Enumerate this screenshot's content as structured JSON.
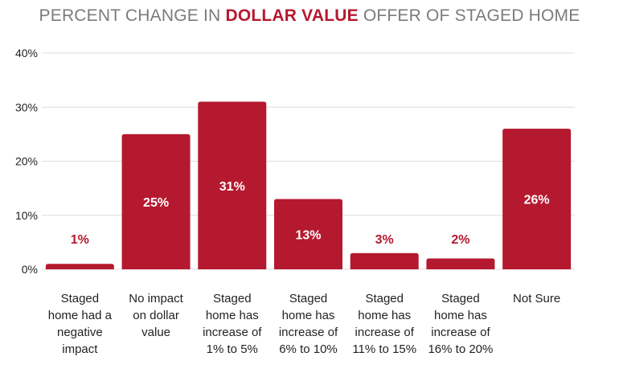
{
  "chart_data": {
    "type": "bar",
    "title_parts": [
      "PERCENT CHANGE IN ",
      "DOLLAR VALUE",
      " OFFER OF STAGED HOME"
    ],
    "categories": [
      [
        "Staged",
        "home had a",
        "negative",
        "impact"
      ],
      [
        "No impact",
        "on dollar",
        "value"
      ],
      [
        "Staged",
        "home has",
        "increase of",
        "1% to 5%"
      ],
      [
        "Staged",
        "home has",
        "increase of",
        "6% to 10%"
      ],
      [
        "Staged",
        "home has",
        "increase of",
        "11% to 15%"
      ],
      [
        "Staged",
        "home has",
        "increase of",
        "16% to 20%"
      ],
      [
        "Not Sure"
      ]
    ],
    "values": [
      1,
      25,
      31,
      13,
      3,
      2,
      26
    ],
    "data_labels": [
      "1%",
      "25%",
      "31%",
      "13%",
      "3%",
      "2%",
      "26%"
    ],
    "yticks": [
      0,
      10,
      20,
      30,
      40
    ],
    "ytick_labels": [
      "0%",
      "10%",
      "20%",
      "30%",
      "40%"
    ],
    "ylim": [
      0,
      40
    ],
    "xlabel": "",
    "ylabel": "",
    "grid": true,
    "colors": {
      "bar": "#b5192f",
      "grid": "#dcdcdc",
      "title": "#7b7b7d",
      "label_inside": "#ffffff"
    }
  }
}
